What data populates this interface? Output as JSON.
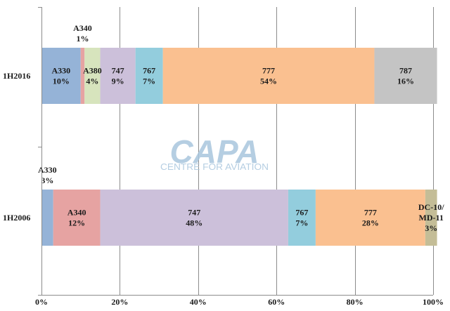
{
  "chart_data": {
    "type": "bar",
    "orientation": "horizontal",
    "stacked": "percent",
    "categories": [
      "1H2016",
      "1H2006"
    ],
    "series": [
      {
        "name": "A330",
        "values": [
          10,
          3
        ],
        "color": "#95b3d7"
      },
      {
        "name": "A340",
        "values": [
          1,
          12
        ],
        "color": "#e6a3a2"
      },
      {
        "name": "A380",
        "values": [
          4,
          0
        ],
        "color": "#d7e4bd"
      },
      {
        "name": "747",
        "values": [
          9,
          48
        ],
        "color": "#ccc0da"
      },
      {
        "name": "767",
        "values": [
          7,
          7
        ],
        "color": "#93cddd"
      },
      {
        "name": "777",
        "values": [
          54,
          28
        ],
        "color": "#fac090"
      },
      {
        "name": "787",
        "values": [
          16,
          0
        ],
        "color": "#c4c4c4"
      },
      {
        "name": "DC-10/MD-11",
        "values": [
          0,
          3
        ],
        "color": "#c4bd97"
      }
    ],
    "segment_labels": [
      [
        {
          "series": "A330",
          "lines": [
            "A330",
            "10%"
          ],
          "placement": "inside"
        },
        {
          "series": "A340",
          "lines": [
            "A340",
            "1%"
          ],
          "placement": "above"
        },
        {
          "series": "A380",
          "lines": [
            "A380",
            "4%"
          ],
          "placement": "inside"
        },
        {
          "series": "747",
          "lines": [
            "747",
            "9%"
          ],
          "placement": "inside"
        },
        {
          "series": "767",
          "lines": [
            "767",
            "7%"
          ],
          "placement": "inside"
        },
        {
          "series": "777",
          "lines": [
            "777",
            "54%"
          ],
          "placement": "inside"
        },
        {
          "series": "787",
          "lines": [
            "787",
            "16%"
          ],
          "placement": "inside"
        }
      ],
      [
        {
          "series": "A330",
          "lines": [
            "A330",
            "3%"
          ],
          "placement": "above"
        },
        {
          "series": "A340",
          "lines": [
            "A340",
            "12%"
          ],
          "placement": "inside"
        },
        {
          "series": "747",
          "lines": [
            "747",
            "48%"
          ],
          "placement": "inside"
        },
        {
          "series": "767",
          "lines": [
            "767",
            "7%"
          ],
          "placement": "inside"
        },
        {
          "series": "777",
          "lines": [
            "777",
            "28%"
          ],
          "placement": "inside"
        },
        {
          "series": "DC-10/MD-11",
          "lines": [
            "DC-10/",
            "MD-11",
            "3%"
          ],
          "placement": "inside"
        }
      ]
    ],
    "xlim": [
      0,
      100
    ],
    "xticks": [
      "0%",
      "20%",
      "40%",
      "60%",
      "80%",
      "100%"
    ],
    "grid": true,
    "legend": "none",
    "title": "",
    "xlabel": "",
    "ylabel": ""
  },
  "watermark": {
    "logo_text": "CAPA",
    "tagline": "CENTRE FOR AVIATION",
    "color": "#a9c6de"
  }
}
